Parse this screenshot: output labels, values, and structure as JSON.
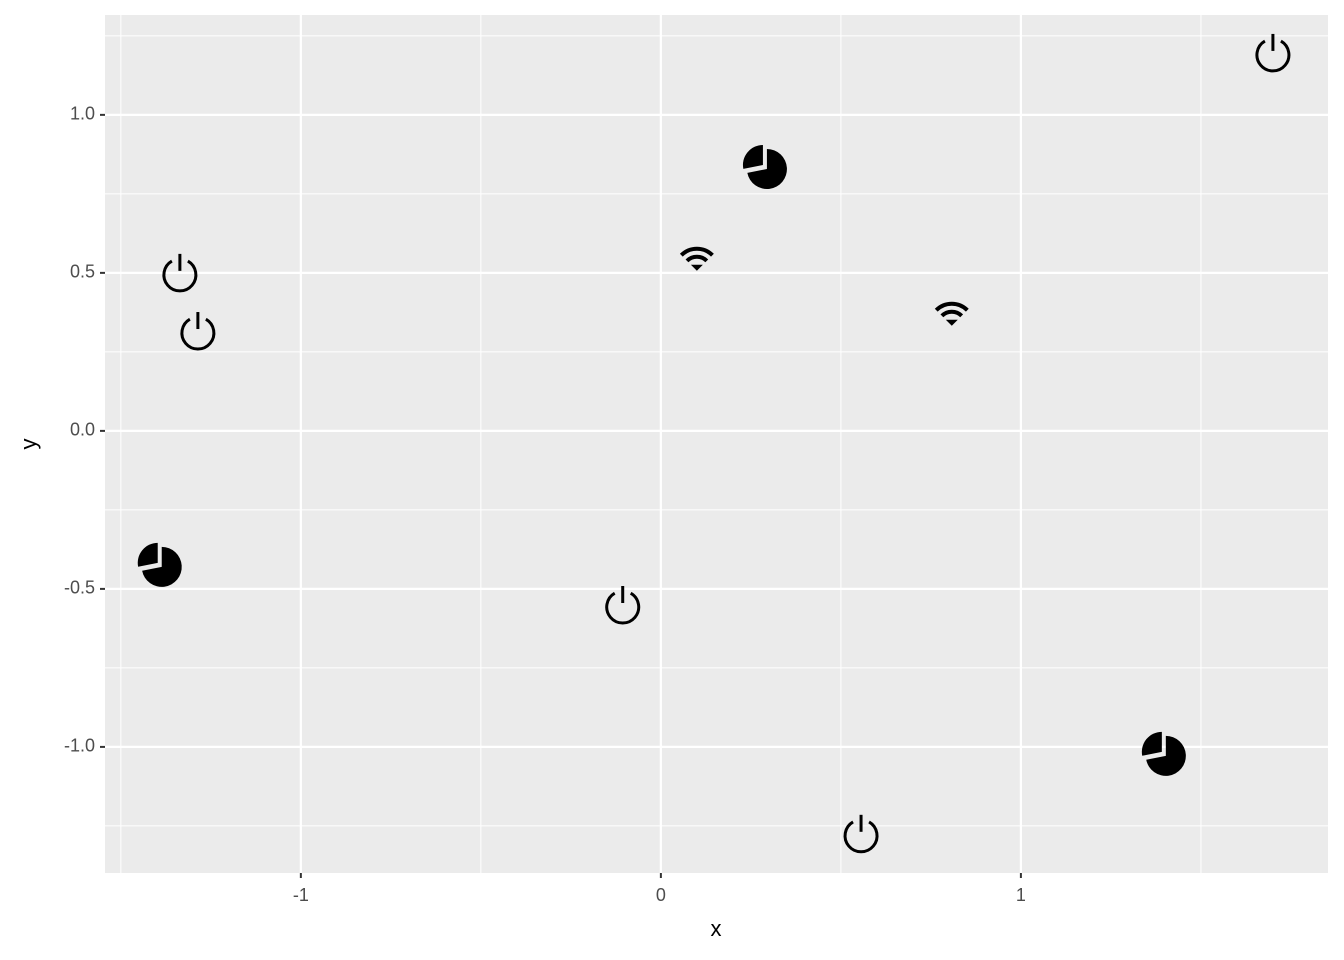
{
  "chart_data": {
    "type": "scatter",
    "x_label": "x",
    "y_label": "y",
    "xlim": [
      -1.544,
      1.853
    ],
    "ylim": [
      -1.399,
      1.316
    ],
    "xticks": [
      -1,
      0,
      1
    ],
    "yticks": [
      {
        "value": -1.0,
        "label": "-1.0"
      },
      {
        "value": -0.5,
        "label": "-0.5"
      },
      {
        "value": 0.0,
        "label": "0.0"
      },
      {
        "value": 0.5,
        "label": "0.5"
      },
      {
        "value": 1.0,
        "label": "1.0"
      }
    ],
    "xminor": [
      -1.5,
      -0.5,
      0.5,
      1.5
    ],
    "yminor": [
      -1.25,
      -0.75,
      -0.25,
      0.25,
      0.75,
      1.25
    ],
    "grid": true,
    "series": [
      {
        "marker": "power",
        "color": "#000000",
        "x": [
          -1.336,
          -1.286,
          -0.106,
          0.556,
          1.7
        ],
        "y": [
          0.5,
          0.316,
          -0.551,
          -1.275,
          1.196
        ]
      },
      {
        "marker": "pie",
        "color": "#000000",
        "x": [
          -1.392,
          0.289,
          1.397
        ],
        "y": [
          -0.424,
          0.835,
          -1.022
        ]
      },
      {
        "marker": "wifi",
        "color": "#000000",
        "x": [
          0.1,
          0.808
        ],
        "y": [
          0.551,
          0.377
        ]
      }
    ]
  }
}
